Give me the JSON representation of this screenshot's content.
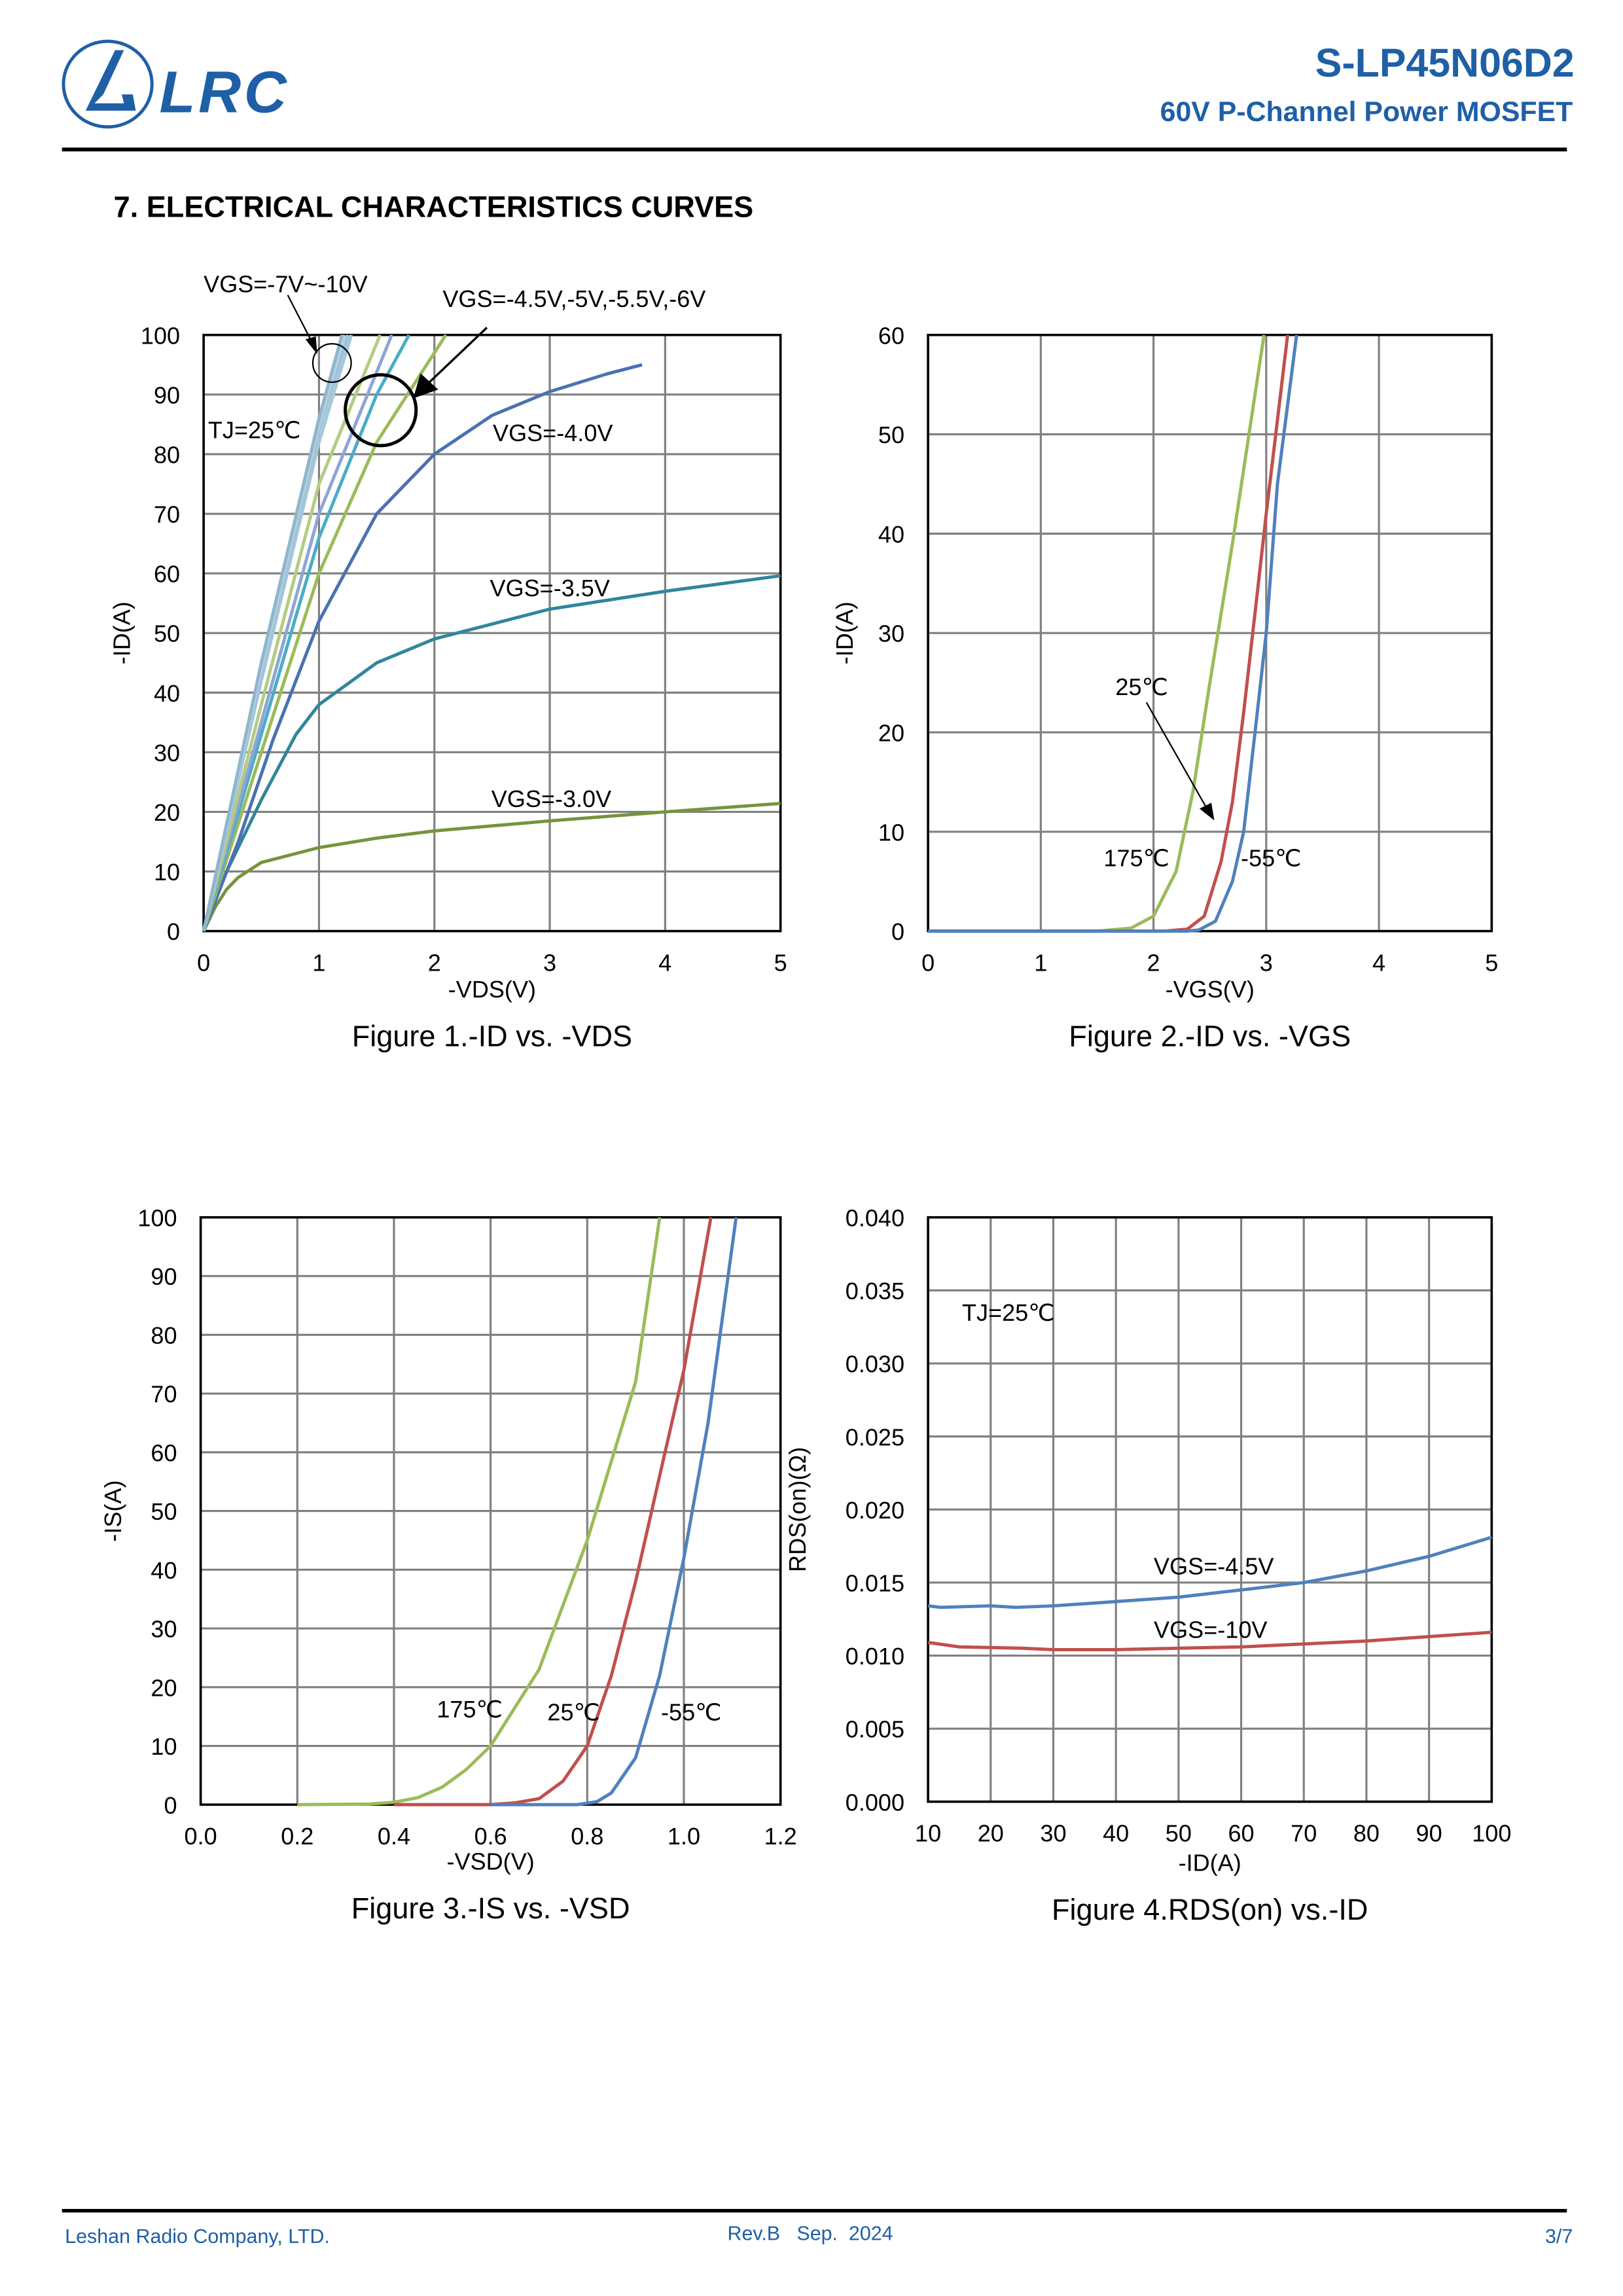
{
  "header": {
    "logo_text": "LRC",
    "part_number": "S-LP45N06D2",
    "subtitle": "60V P-Channel Power MOSFET",
    "brand_color": "#1f5fa6"
  },
  "section_title": "7. ELECTRICAL CHARACTERISTICS CURVES",
  "footer": {
    "company": "Leshan Radio Company, LTD.",
    "revision": "Rev.B   Sep.  2024",
    "page": "3/7"
  },
  "chart_data": [
    {
      "type": "line",
      "title": "Figure 1.-ID vs. -VDS",
      "xlabel": "-VDS(V)",
      "ylabel": "-ID(A)",
      "xlim": [
        0,
        5
      ],
      "ylim": [
        0,
        100
      ],
      "xticks": [
        0,
        1,
        2,
        3,
        4,
        5
      ],
      "yticks": [
        0,
        10,
        20,
        30,
        40,
        50,
        60,
        70,
        80,
        90,
        100
      ],
      "grid": true,
      "annotations": [
        "TJ=25℃",
        "VGS=-7V~-10V",
        "VGS=-4.5V,-5V,-5.5V,-6V",
        "VGS=-4.0V",
        "VGS=-3.5V",
        "VGS=-3.0V"
      ],
      "series": [
        {
          "name": "VGS=-3.0V",
          "color": "#77933c",
          "x": [
            0,
            0.1,
            0.2,
            0.3,
            0.5,
            1,
            1.5,
            2,
            3,
            4,
            5
          ],
          "y": [
            0,
            4,
            7,
            9,
            11.5,
            14,
            15.6,
            16.8,
            18.5,
            20,
            21.4
          ]
        },
        {
          "name": "VGS=-3.5V",
          "color": "#31859c",
          "x": [
            0,
            0.2,
            0.5,
            0.8,
            1,
            1.5,
            2,
            3,
            4,
            5
          ],
          "y": [
            0,
            10,
            22,
            33,
            38,
            45,
            49,
            54,
            57,
            59.6
          ]
        },
        {
          "name": "VGS=-4.0V",
          "color": "#4a72b0",
          "x": [
            0,
            0.3,
            0.6,
            1,
            1.5,
            2,
            2.5,
            3,
            3.5,
            3.8
          ],
          "y": [
            0,
            15,
            32,
            52,
            70,
            80,
            86.5,
            90.5,
            93.5,
            95
          ]
        },
        {
          "name": "VGS=-4.5V",
          "color": "#9bbb59",
          "x": [
            0,
            0.5,
            1,
            1.5,
            2.1
          ],
          "y": [
            0,
            30,
            60,
            82,
            100
          ]
        },
        {
          "name": "VGS=-5V",
          "color": "#4bacc6",
          "x": [
            0,
            0.5,
            1,
            1.5,
            1.78
          ],
          "y": [
            0,
            33,
            66,
            90,
            100
          ]
        },
        {
          "name": "VGS=-5.5V",
          "color": "#8ea5d6",
          "x": [
            0,
            0.5,
            1,
            1.63
          ],
          "y": [
            0,
            35,
            70,
            100
          ]
        },
        {
          "name": "VGS=-6V",
          "color": "#b3cc82",
          "x": [
            0,
            0.5,
            1,
            1.53
          ],
          "y": [
            0,
            38,
            75,
            100
          ]
        },
        {
          "name": "VGS=-7V",
          "color": "#a5c8d8",
          "x": [
            0,
            0.5,
            1,
            1.28
          ],
          "y": [
            0,
            42,
            82,
            100
          ]
        },
        {
          "name": "VGS=-8V",
          "color": "#9fc0e0",
          "x": [
            0,
            0.5,
            1,
            1.25
          ],
          "y": [
            0,
            43,
            84,
            100
          ]
        },
        {
          "name": "VGS=-9V",
          "color": "#b7d3dc",
          "x": [
            0,
            0.5,
            1,
            1.22
          ],
          "y": [
            0,
            44,
            85,
            100
          ]
        },
        {
          "name": "VGS=-10V",
          "color": "#8fb6cc",
          "x": [
            0,
            0.5,
            1,
            1.2
          ],
          "y": [
            0,
            45,
            86,
            100
          ]
        }
      ]
    },
    {
      "type": "line",
      "title": "Figure 2.-ID vs. -VGS",
      "xlabel": "-VGS(V)",
      "ylabel": "-ID(A)",
      "xlim": [
        0,
        5
      ],
      "ylim": [
        0,
        60
      ],
      "xticks": [
        0,
        1,
        2,
        3,
        4,
        5
      ],
      "yticks": [
        0,
        10,
        20,
        30,
        40,
        50,
        60
      ],
      "grid": true,
      "annotations": [
        "25℃",
        "175℃",
        "-55℃"
      ],
      "series": [
        {
          "name": "175℃",
          "color": "#9bbb59",
          "x": [
            0,
            1.5,
            1.8,
            2.0,
            2.2,
            2.35,
            2.5,
            2.7,
            2.98
          ],
          "y": [
            0,
            0,
            0.3,
            1.5,
            6,
            14,
            25,
            39,
            60
          ]
        },
        {
          "name": "25℃",
          "color": "#c0504d",
          "x": [
            0,
            2.1,
            2.3,
            2.45,
            2.6,
            2.7,
            2.8,
            2.9,
            3.0,
            3.19
          ],
          "y": [
            0,
            0,
            0.2,
            1.5,
            7,
            13,
            22,
            32,
            42,
            60
          ]
        },
        {
          "name": "-55℃",
          "color": "#4f81bd",
          "x": [
            0,
            2.3,
            2.4,
            2.55,
            2.7,
            2.8,
            2.9,
            3.0,
            3.1,
            3.27
          ],
          "y": [
            0,
            0,
            0.1,
            1,
            5,
            10,
            20,
            30,
            45,
            60
          ]
        }
      ]
    },
    {
      "type": "line",
      "title": "Figure 3.-IS vs. -VSD",
      "xlabel": "-VSD(V)",
      "ylabel": "-IS(A)",
      "xlim": [
        0,
        1.2
      ],
      "ylim": [
        0,
        100
      ],
      "xticks": [
        "0.0",
        "0.2",
        "0.4",
        "0.6",
        "0.8",
        "1.0",
        "1.2"
      ],
      "yticks": [
        0,
        10,
        20,
        30,
        40,
        50,
        60,
        70,
        80,
        90,
        100
      ],
      "grid": true,
      "annotations": [
        "175℃",
        "25℃",
        "-55℃"
      ],
      "series": [
        {
          "name": "175℃",
          "color": "#9bbb59",
          "x": [
            0.2,
            0.35,
            0.4,
            0.45,
            0.5,
            0.55,
            0.6,
            0.7,
            0.8,
            0.9,
            0.95
          ],
          "y": [
            0,
            0.1,
            0.4,
            1.2,
            3,
            6,
            10,
            23,
            45,
            72,
            100
          ]
        },
        {
          "name": "25℃",
          "color": "#c0504d",
          "x": [
            0.4,
            0.6,
            0.65,
            0.7,
            0.75,
            0.8,
            0.85,
            0.9,
            0.95,
            1.0,
            1.056
          ],
          "y": [
            0,
            0,
            0.3,
            1,
            4,
            10,
            22,
            38,
            56,
            74,
            100
          ]
        },
        {
          "name": "-55℃",
          "color": "#4f81bd",
          "x": [
            0.6,
            0.78,
            0.82,
            0.85,
            0.9,
            0.95,
            1.0,
            1.05,
            1.108
          ],
          "y": [
            0,
            0,
            0.5,
            2,
            8,
            22,
            42,
            65,
            100
          ]
        }
      ]
    },
    {
      "type": "line",
      "title": "Figure 4.RDS(on) vs.-ID",
      "xlabel": "-ID(A)",
      "ylabel": "RDS(on)(Ω)",
      "xlim": [
        10,
        100
      ],
      "ylim": [
        0,
        0.04
      ],
      "xticks": [
        10,
        20,
        30,
        40,
        50,
        60,
        70,
        80,
        90,
        100
      ],
      "yticks": [
        "0.000",
        "0.005",
        "0.010",
        "0.015",
        "0.020",
        "0.025",
        "0.030",
        "0.035",
        "0.040"
      ],
      "grid": true,
      "annotations": [
        "TJ=25℃",
        "VGS=-4.5V",
        "VGS=-10V"
      ],
      "series": [
        {
          "name": "VGS=-4.5V",
          "color": "#4f81bd",
          "x": [
            10,
            12,
            20,
            24,
            30,
            40,
            50,
            60,
            70,
            80,
            90,
            100
          ],
          "y": [
            0.0134,
            0.0133,
            0.0134,
            0.0133,
            0.0134,
            0.0137,
            0.014,
            0.0145,
            0.015,
            0.0158,
            0.0168,
            0.0181
          ]
        },
        {
          "name": "VGS=-10V",
          "color": "#c0504d",
          "x": [
            10,
            15,
            25,
            30,
            40,
            50,
            60,
            70,
            80,
            90,
            100
          ],
          "y": [
            0.0109,
            0.0106,
            0.0105,
            0.0104,
            0.0104,
            0.0105,
            0.0106,
            0.0108,
            0.011,
            0.0113,
            0.0116
          ]
        }
      ]
    }
  ]
}
